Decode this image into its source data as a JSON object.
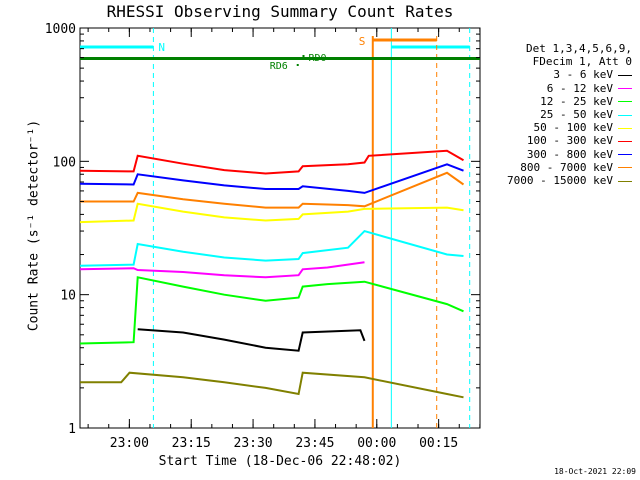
{
  "chart_data": {
    "type": "line",
    "title": "RHESSI Observing Summary Count Rates",
    "xlabel": "Start Time (18-Dec-06 22:48:02)",
    "ylabel": "Count Rate (s⁻¹ detector⁻¹)",
    "yscale": "log",
    "ylim": [
      1,
      1000
    ],
    "xlim_minutes": [
      0,
      97
    ],
    "x_tick_labels": [
      "23:00",
      "23:15",
      "23:30",
      "23:45",
      "00:00",
      "00:15"
    ],
    "x_tick_minutes": [
      11.97,
      26.97,
      41.97,
      56.97,
      71.97,
      86.97
    ],
    "y_tick_labels": [
      "1",
      "10",
      "100",
      "1000"
    ],
    "y_tick_values": [
      1,
      10,
      100,
      1000
    ],
    "legend_header": [
      "Det 1,3,4,5,6,9,",
      "FDecim 1, Att 0"
    ],
    "series": [
      {
        "name": "3 - 6 keV",
        "color": "#000000",
        "points": [
          [
            14,
            5.5
          ],
          [
            25,
            5.2
          ],
          [
            35,
            4.6
          ],
          [
            45,
            4.0
          ],
          [
            53,
            3.8
          ],
          [
            54,
            5.2
          ],
          [
            68,
            5.4
          ],
          [
            69,
            4.5
          ]
        ]
      },
      {
        "name": "6 - 12 keV",
        "color": "#ff00ff",
        "points": [
          [
            0,
            15.5
          ],
          [
            13,
            15.8
          ],
          [
            14,
            15.3
          ],
          [
            25,
            14.8
          ],
          [
            35,
            14.0
          ],
          [
            45,
            13.5
          ],
          [
            53,
            14.0
          ],
          [
            54,
            15.5
          ],
          [
            60,
            16.0
          ],
          [
            69,
            17.5
          ]
        ]
      },
      {
        "name": "12 - 25 keV",
        "color": "#00ff00",
        "points": [
          [
            0,
            4.3
          ],
          [
            13,
            4.4
          ],
          [
            14,
            13.5
          ],
          [
            25,
            11.5
          ],
          [
            35,
            10.0
          ],
          [
            45,
            9.0
          ],
          [
            53,
            9.5
          ],
          [
            54,
            11.5
          ],
          [
            60,
            12.0
          ],
          [
            69,
            12.5
          ],
          [
            89,
            8.5
          ],
          [
            93,
            7.5
          ]
        ]
      },
      {
        "name": "25 - 50 keV",
        "color": "#00ffff",
        "points": [
          [
            0,
            16.5
          ],
          [
            13,
            16.8
          ],
          [
            14,
            24.0
          ],
          [
            25,
            21.0
          ],
          [
            35,
            19.0
          ],
          [
            45,
            18.0
          ],
          [
            53,
            18.5
          ],
          [
            54,
            20.5
          ],
          [
            65,
            22.5
          ],
          [
            69,
            30.0
          ],
          [
            89,
            20.0
          ],
          [
            93,
            19.5
          ]
        ]
      },
      {
        "name": "50 - 100 keV",
        "color": "#ffff00",
        "points": [
          [
            0,
            35.0
          ],
          [
            13,
            36.0
          ],
          [
            14,
            48.0
          ],
          [
            25,
            42.0
          ],
          [
            35,
            38.0
          ],
          [
            45,
            36.0
          ],
          [
            53,
            37.0
          ],
          [
            54,
            40.0
          ],
          [
            65,
            42.0
          ],
          [
            69,
            44.0
          ],
          [
            89,
            45.0
          ],
          [
            93,
            43.0
          ]
        ]
      },
      {
        "name": "100 - 300 keV",
        "color": "#ff0000",
        "points": [
          [
            0,
            85.0
          ],
          [
            13,
            84.0
          ],
          [
            14,
            110.0
          ],
          [
            25,
            96.0
          ],
          [
            35,
            86.0
          ],
          [
            45,
            81.0
          ],
          [
            53,
            84.0
          ],
          [
            54,
            92.0
          ],
          [
            65,
            95.0
          ],
          [
            69,
            98.0
          ],
          [
            70,
            110.0
          ],
          [
            89,
            120.0
          ],
          [
            93,
            102.0
          ]
        ]
      },
      {
        "name": "300 - 800 keV",
        "color": "#0000ff",
        "points": [
          [
            0,
            68.0
          ],
          [
            13,
            67.0
          ],
          [
            14,
            80.0
          ],
          [
            25,
            72.0
          ],
          [
            35,
            66.0
          ],
          [
            45,
            62.0
          ],
          [
            53,
            62.0
          ],
          [
            54,
            65.0
          ],
          [
            65,
            60.0
          ],
          [
            69,
            58.0
          ],
          [
            89,
            95.0
          ],
          [
            93,
            85.0
          ]
        ]
      },
      {
        "name": "800 - 7000 keV",
        "color": "#ff8000",
        "points": [
          [
            0,
            50.0
          ],
          [
            13,
            50.0
          ],
          [
            14,
            58.0
          ],
          [
            25,
            52.0
          ],
          [
            35,
            48.0
          ],
          [
            45,
            45.0
          ],
          [
            53,
            45.0
          ],
          [
            54,
            48.0
          ],
          [
            65,
            47.0
          ],
          [
            69,
            46.0
          ],
          [
            89,
            82.0
          ],
          [
            93,
            67.0
          ]
        ]
      },
      {
        "name": "7000 - 15000 keV",
        "color": "#808000",
        "points": [
          [
            0,
            2.2
          ],
          [
            10,
            2.2
          ],
          [
            12,
            2.6
          ],
          [
            25,
            2.4
          ],
          [
            35,
            2.2
          ],
          [
            45,
            2.0
          ],
          [
            53,
            1.8
          ],
          [
            54,
            2.6
          ],
          [
            69,
            2.4
          ],
          [
            89,
            1.8
          ],
          [
            93,
            1.7
          ]
        ]
      }
    ],
    "annotations": [
      {
        "label": "N",
        "kind": "night",
        "color": "#00ffff",
        "start": 0,
        "end": 17.8
      },
      {
        "label": "N",
        "kind": "night",
        "color": "#00ffff",
        "start": 75.5,
        "end": 94.5
      },
      {
        "label": "S",
        "kind": "saa",
        "color": "#ff8000",
        "start": 71.0,
        "end": 86.5
      },
      {
        "label": "RD6",
        "kind": "data",
        "color": "#008000",
        "start": 52.8
      },
      {
        "label": "RD0",
        "kind": "data",
        "color": "#008000",
        "start": 54.2
      }
    ],
    "reference_line_value": 590,
    "grid": false,
    "legend_position": "outside-right"
  },
  "footer_stamp": "18-Oct-2021 22:09"
}
